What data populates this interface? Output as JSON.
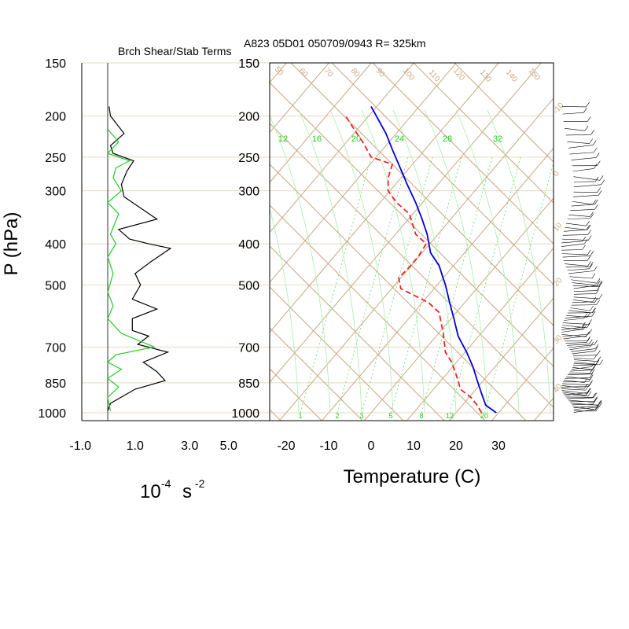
{
  "chart_data": [
    {
      "type": "line",
      "title": "Brch Shear/Stab Terms",
      "xlabel": "10-4 s -2",
      "xlabel_parts": {
        "base": "10",
        "exp1": "-4",
        "unit": "s",
        "exp2": "-2"
      },
      "ylabel": "P (hPa)",
      "xlim": [
        -1.0,
        5.0
      ],
      "xticks": [
        "-1.0",
        "1.0",
        "3.0",
        "5.0"
      ],
      "xtick_values": [
        -1.0,
        1.0,
        3.0,
        5.0
      ],
      "yticks": [
        "150",
        "200",
        "250",
        "300",
        "400",
        "500",
        "700",
        "850",
        "1000"
      ],
      "ytick_values": [
        150,
        200,
        250,
        300,
        400,
        500,
        700,
        850,
        1000
      ],
      "series": [
        {
          "color": "#000000",
          "points": [
            [
              0.05,
              190
            ],
            [
              0.1,
              200
            ],
            [
              0.6,
              220
            ],
            [
              0.1,
              235
            ],
            [
              0.2,
              245
            ],
            [
              0.95,
              255
            ],
            [
              0.7,
              270
            ],
            [
              0.5,
              290
            ],
            [
              0.6,
              310
            ],
            [
              1.8,
              350
            ],
            [
              0.4,
              370
            ],
            [
              0.8,
              390
            ],
            [
              1.5,
              400
            ],
            [
              2.3,
              410
            ],
            [
              1.6,
              440
            ],
            [
              1.0,
              470
            ],
            [
              1.2,
              500
            ],
            [
              0.9,
              540
            ],
            [
              1.8,
              570
            ],
            [
              0.9,
              600
            ],
            [
              0.9,
              640
            ],
            [
              1.5,
              660
            ],
            [
              1.1,
              690
            ],
            [
              2.2,
              720
            ],
            [
              1.3,
              760
            ],
            [
              1.8,
              800
            ],
            [
              2.1,
              840
            ],
            [
              1.0,
              880
            ],
            [
              0.1,
              950
            ],
            [
              0.0,
              990
            ]
          ]
        },
        {
          "color": "#22cc22",
          "points": [
            [
              0.0,
              215
            ],
            [
              0.4,
              230
            ],
            [
              0.0,
              245
            ],
            [
              0.8,
              255
            ],
            [
              0.3,
              265
            ],
            [
              0.2,
              280
            ],
            [
              0.5,
              300
            ],
            [
              0.0,
              320
            ],
            [
              0.4,
              340
            ],
            [
              0.1,
              380
            ],
            [
              0.3,
              400
            ],
            [
              0.0,
              430
            ],
            [
              0.2,
              470
            ],
            [
              0.0,
              520
            ],
            [
              0.2,
              560
            ],
            [
              0.0,
              600
            ],
            [
              0.5,
              650
            ],
            [
              1.7,
              700
            ],
            [
              0.3,
              730
            ],
            [
              0.0,
              760
            ],
            [
              0.5,
              790
            ],
            [
              0.0,
              830
            ],
            [
              0.4,
              870
            ],
            [
              0.0,
              920
            ],
            [
              0.1,
              990
            ]
          ]
        }
      ]
    },
    {
      "type": "line",
      "title": "A823 05D01 050709/0943 R= 325km",
      "xlabel": "Temperature (C)",
      "ylabel": "",
      "xlim": [
        -23,
        39
      ],
      "xticks": [
        "-20",
        "-10",
        "0",
        "10",
        "20",
        "30"
      ],
      "xtick_values": [
        -20,
        -10,
        0,
        10,
        20,
        30
      ],
      "yticks": [
        "150",
        "200",
        "250",
        "300",
        "400",
        "500",
        "700",
        "850",
        "1000"
      ],
      "ytick_values": [
        150,
        200,
        250,
        300,
        400,
        500,
        700,
        850,
        1000
      ],
      "dry_adiabat_labels": [
        "50",
        "60",
        "70",
        "80",
        "90",
        "100",
        "110",
        "120",
        "130",
        "140",
        "150"
      ],
      "saturated_adiabat_labels": [
        "12",
        "16",
        "20",
        "24",
        "28",
        "32"
      ],
      "mixing_ratio_labels": [
        "1",
        "2",
        "3",
        "5",
        "8",
        "12",
        "20"
      ],
      "isotherm_labels": [
        "-10",
        "0",
        "10",
        "20",
        "30",
        "40"
      ],
      "series": [
        {
          "name": "",
          "color": "#0000dd",
          "style": "solid",
          "points": [
            [
              29.5,
              1000
            ],
            [
              27,
              960
            ],
            [
              26,
              900
            ],
            [
              25,
              840
            ],
            [
              24,
              780
            ],
            [
              22.5,
              720
            ],
            [
              20.5,
              660
            ],
            [
              19.5,
              600
            ],
            [
              18.5,
              550
            ],
            [
              17.5,
              500
            ],
            [
              16,
              450
            ],
            [
              14,
              420
            ],
            [
              13.2,
              380
            ],
            [
              12,
              350
            ],
            [
              10.5,
              320
            ],
            [
              8.5,
              290
            ],
            [
              6.5,
              260
            ],
            [
              5,
              240
            ],
            [
              3.5,
              220
            ],
            [
              0,
              190
            ]
          ]
        },
        {
          "name": "",
          "color": "#ee2222",
          "style": "dashed",
          "points": [
            [
              26,
              1000
            ],
            [
              25,
              960
            ],
            [
              23.5,
              920
            ],
            [
              21,
              880
            ],
            [
              20.5,
              840
            ],
            [
              19,
              760
            ],
            [
              17.5,
              720
            ],
            [
              17,
              650
            ],
            [
              16,
              580
            ],
            [
              13.5,
              550
            ],
            [
              7,
              510
            ],
            [
              6.5,
              480
            ],
            [
              8.5,
              460
            ],
            [
              11,
              430
            ],
            [
              13,
              400
            ],
            [
              10.5,
              380
            ],
            [
              9,
              340
            ],
            [
              6,
              320
            ],
            [
              4,
              300
            ],
            [
              4,
              280
            ],
            [
              5,
              260
            ],
            [
              0,
              250
            ],
            [
              -2,
              230
            ],
            [
              -4,
              215
            ],
            [
              -6,
              200
            ]
          ]
        }
      ]
    }
  ]
}
